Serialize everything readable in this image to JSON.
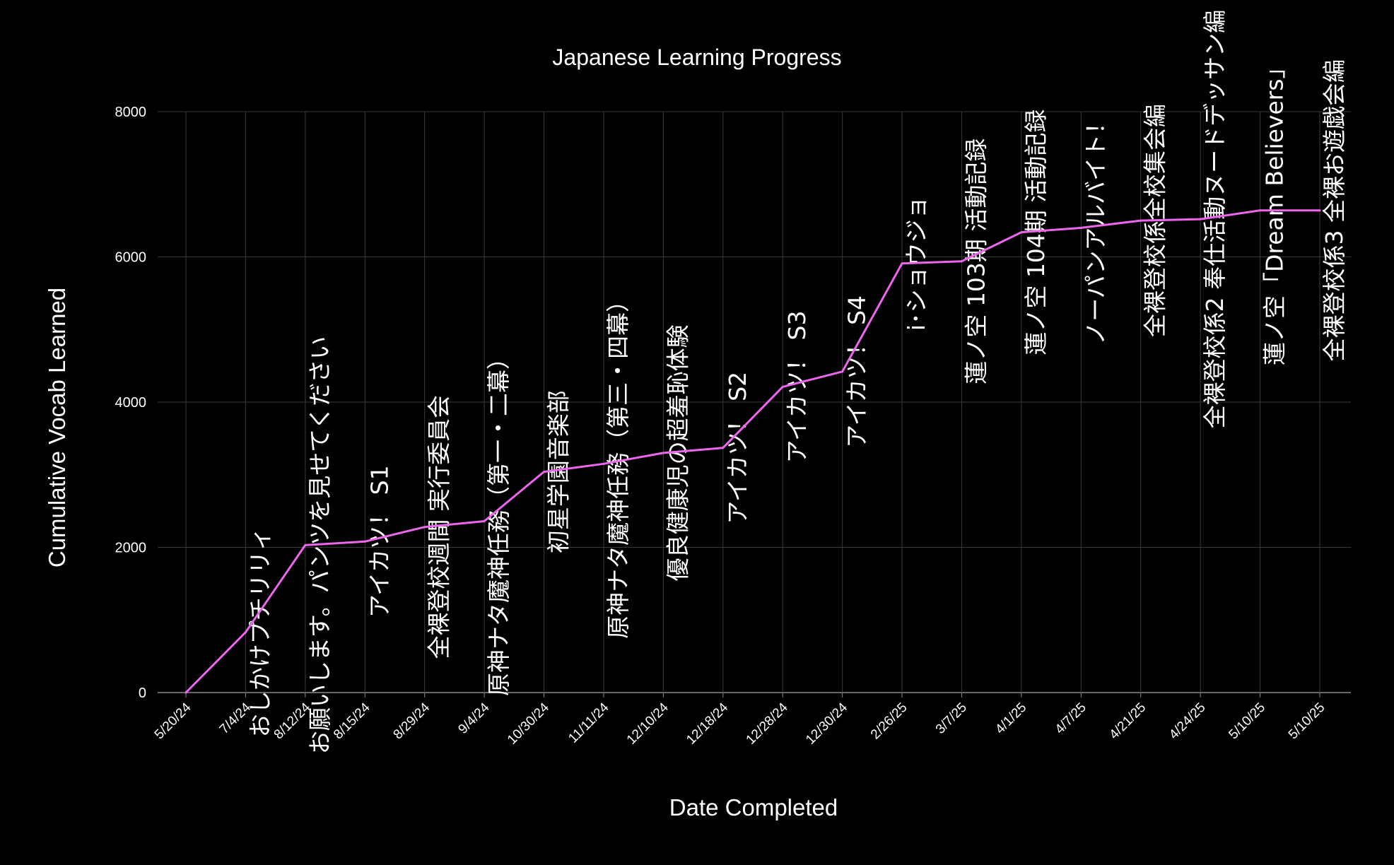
{
  "chart_data": {
    "type": "line",
    "title": "Japanese Learning Progress",
    "xlabel": "Date Completed",
    "ylabel": "Cumulative Vocab Learned",
    "ylim": [
      0,
      8000
    ],
    "yticks": [
      "0",
      "2000",
      "4000",
      "6000",
      "8000"
    ],
    "grid": true,
    "legend": "none",
    "line_color": "#ee66ee",
    "background": "#000000",
    "text_color": "#ffffff",
    "grid_color": "#3a3a3a",
    "categories": [
      "5/20/24",
      "7/4/24",
      "8/12/24",
      "8/15/24",
      "8/29/24",
      "9/4/24",
      "10/30/24",
      "11/11/24",
      "12/10/24",
      "12/18/24",
      "12/28/24",
      "12/30/24",
      "2/26/25",
      "3/7/25",
      "4/1/25",
      "4/7/25",
      "4/21/25",
      "4/24/25",
      "5/10/25",
      "5/10/25"
    ],
    "series": [
      {
        "values": [
          0,
          830,
          2030,
          2080,
          2280,
          2360,
          3040,
          3150,
          3300,
          3370,
          4210,
          4420,
          5910,
          5940,
          6340,
          6400,
          6500,
          6520,
          6640,
          6640
        ]
      }
    ],
    "annotations": [
      "",
      "おしかけプチリリィ",
      "お願いします。パンツを見せてください",
      "アイカツ！ S1",
      "全裸登校週間 実行委員会",
      "原神ナタ魔神任務（第一・二幕）",
      "初星学園音楽部",
      "原神ナタ魔神任務（第三・四幕）",
      "優良健康児の超羞恥体験",
      "アイカツ！ S2",
      "アイカツ！ S3",
      "アイカツ！ S4",
      "i･ショウジョ",
      "蓮ノ空 103期 活動記録",
      "蓮ノ空 104期 活動記録",
      "ノーパンアルバイト！",
      "全裸登校係全校集会編",
      "全裸登校係2 奉仕活動ヌードデッサン編",
      "蓮ノ空「Dream Believers」",
      "全裸登校係3 全裸お遊戯会編"
    ]
  }
}
